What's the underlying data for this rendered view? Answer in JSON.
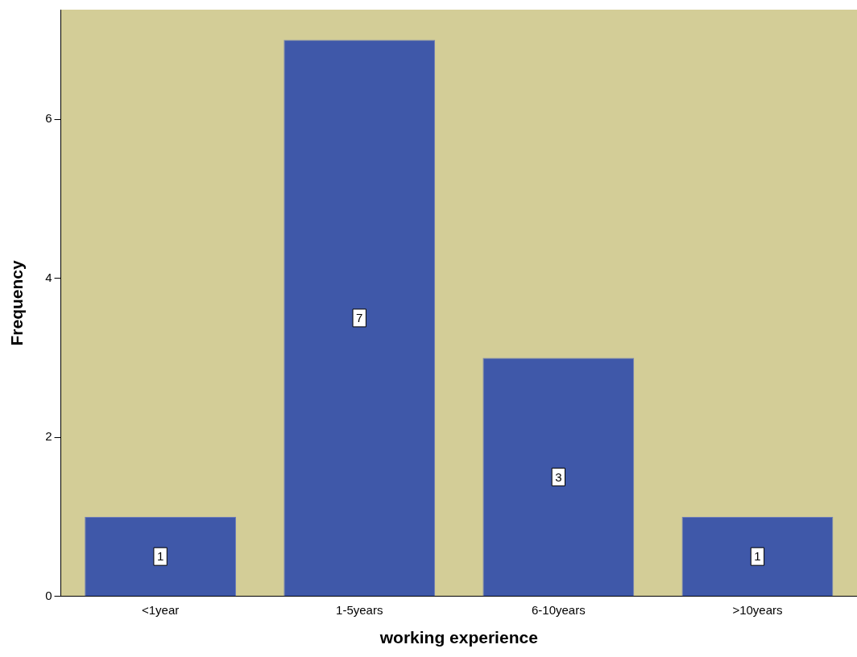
{
  "chart_data": {
    "type": "bar",
    "xlabel": "working experience",
    "ylabel": "Frequency",
    "categories": [
      "<1year",
      "1-5years",
      "6-10years",
      ">10years"
    ],
    "values": [
      1,
      7,
      3,
      1
    ],
    "color": "#3f58a9",
    "ylim": [
      0,
      7.38
    ],
    "yticks": [
      0,
      2,
      4,
      6
    ],
    "grid": false,
    "legend": false,
    "data_labels": true
  }
}
